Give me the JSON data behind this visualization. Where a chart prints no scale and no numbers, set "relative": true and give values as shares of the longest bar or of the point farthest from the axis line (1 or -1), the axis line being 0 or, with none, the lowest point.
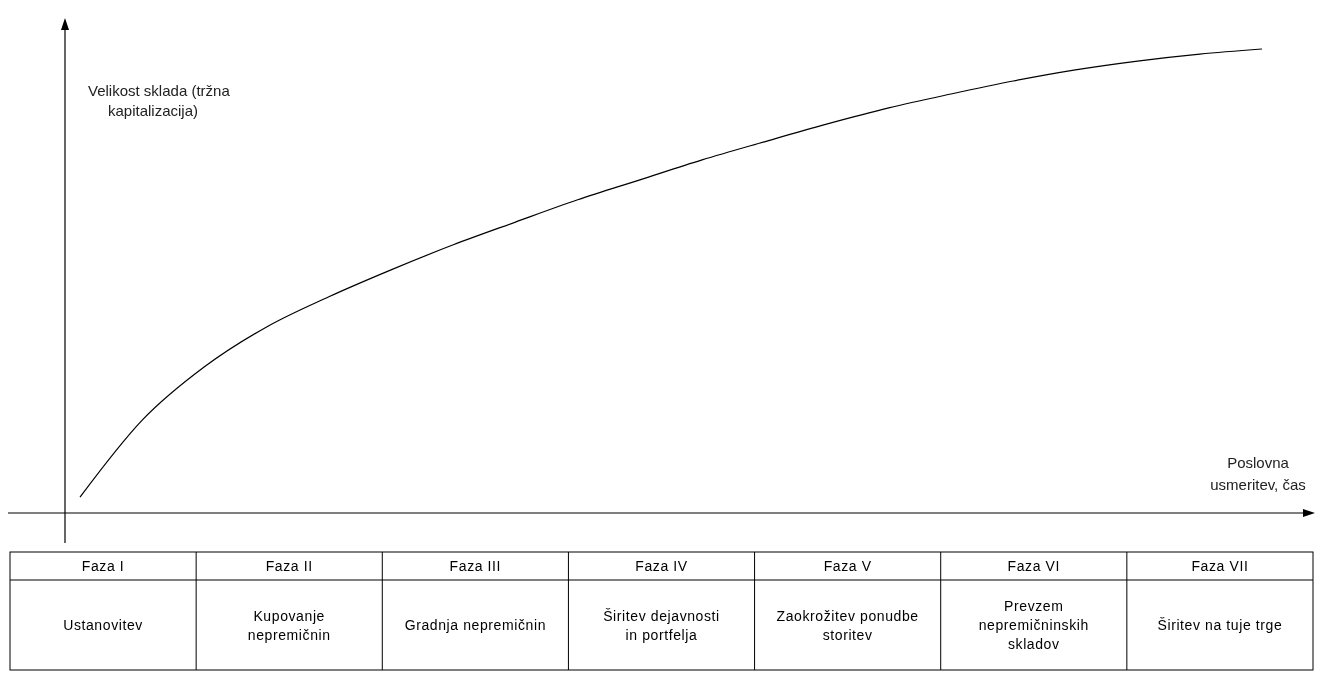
{
  "chart_data": {
    "type": "line",
    "relative": true,
    "xlabel": "Poslovna usmeritev, čas",
    "ylabel": "Velikost sklada (tržna kapitalizacija)",
    "categories": [
      null,
      null,
      null,
      null,
      null,
      null,
      null,
      null,
      null,
      null,
      null,
      null,
      null,
      null,
      null,
      null,
      null,
      null,
      null,
      null
    ],
    "series": [
      {
        "color": "#000000",
        "values": [
          0.034,
          0.2,
          0.315,
          0.401,
          0.466,
          0.524,
          0.578,
          0.627,
          0.675,
          0.718,
          0.761,
          0.8,
          0.838,
          0.873,
          0.903,
          0.931,
          0.955,
          0.974,
          0.989,
          1
        ]
      }
    ],
    "annotations": [
      "Faza I",
      "Faza II",
      "Faza III",
      "Faza IV",
      "Faza V",
      "Faza VI",
      "Faza VII",
      "Ustanovitev",
      "Kupovanje nepremičnin",
      "Gradnja nepremičnin",
      "Širitev dejavnosti in portfelja",
      "Zaokrožitev ponudbe storitev",
      "Prevzem nepremičninskih skladov",
      "Širitev na tuje trge"
    ]
  }
}
